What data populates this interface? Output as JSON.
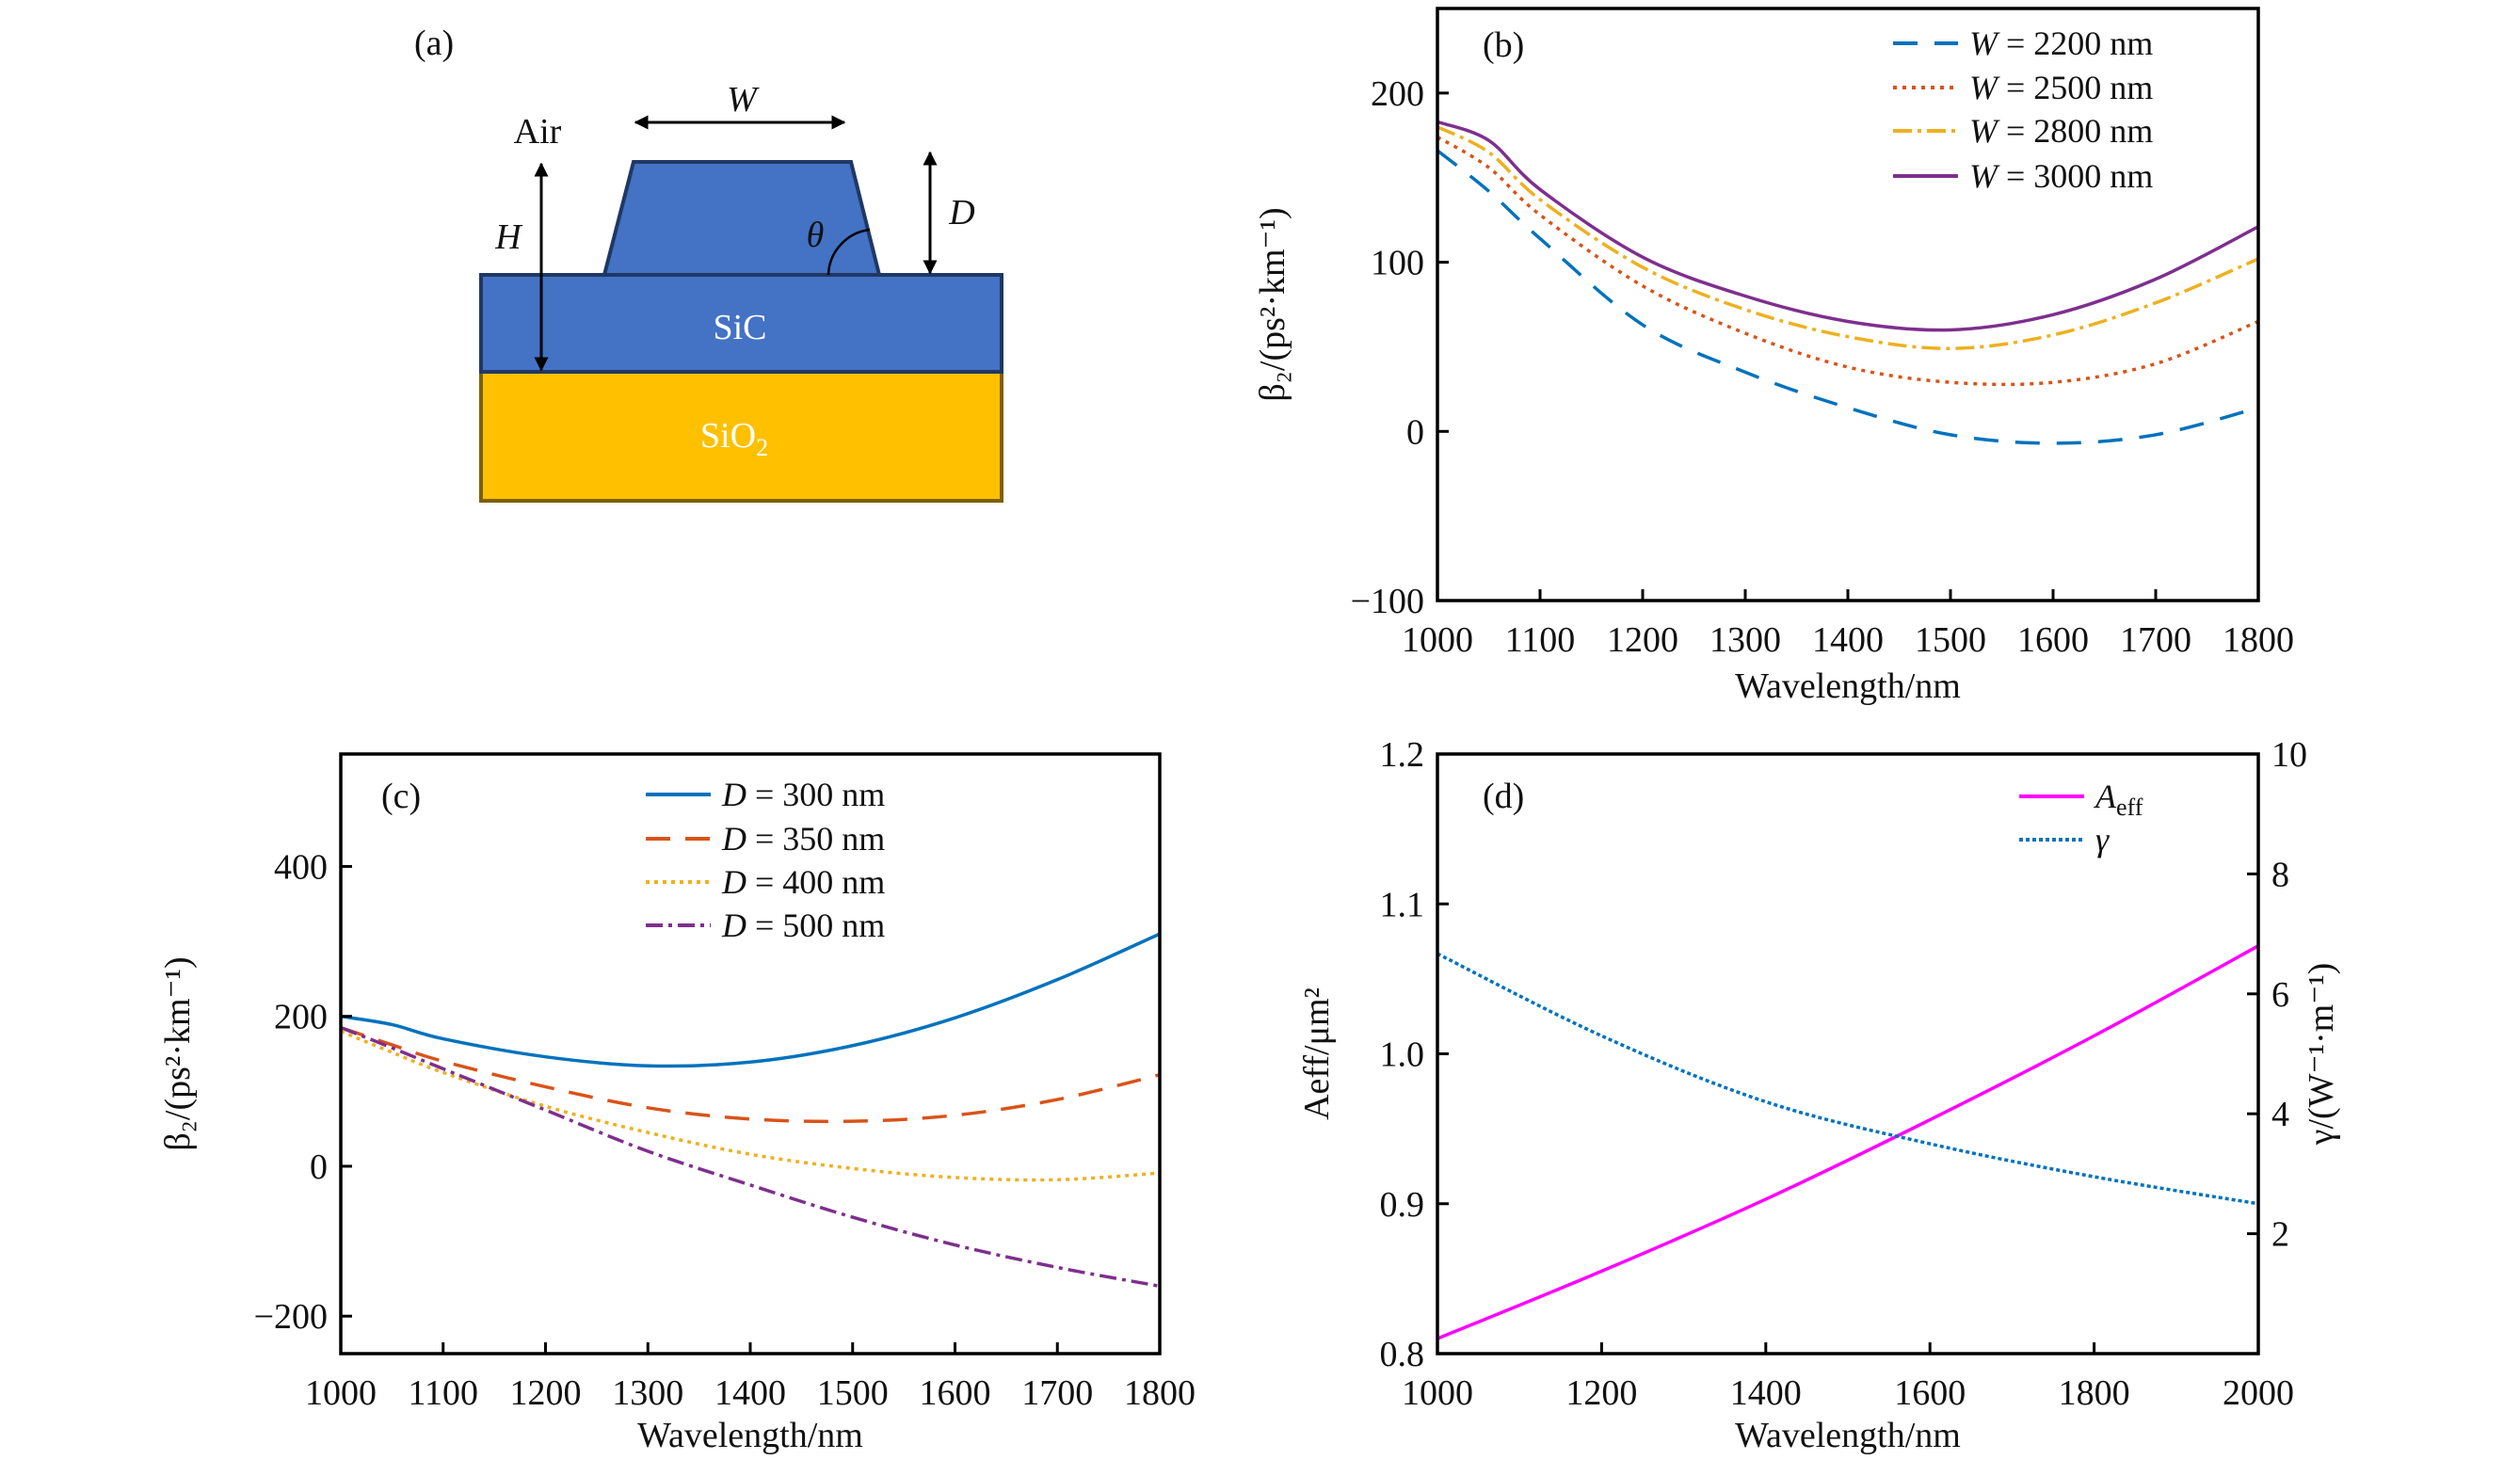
{
  "diagram": {
    "panel_label": "(a)",
    "labels": {
      "air": "Air",
      "w": "W",
      "h": "H",
      "d": "D",
      "theta": "θ",
      "sic": "SiC",
      "sio2_base": "SiO",
      "sio2_sub": "2"
    },
    "colors": {
      "sic": "#4472c4",
      "sio2": "#ffc000",
      "sic_border": "#1f3864",
      "sio2_border": "#7f6000"
    }
  },
  "chart_data": [
    {
      "id": "b",
      "type": "line",
      "panel_label": "(b)",
      "xlabel": "Wavelength/nm",
      "ylabel": "β₂/(ps²·km⁻¹)",
      "xlim": [
        1000,
        1800
      ],
      "ylim": [
        -100,
        250
      ],
      "xticks": [
        1000,
        1100,
        1200,
        1300,
        1400,
        1500,
        1600,
        1700,
        1800
      ],
      "yticks": [
        -100,
        0,
        100,
        200
      ],
      "ytick_labels": [
        "−100",
        "0",
        "100",
        "200"
      ],
      "legend_position": "top-right",
      "grid": false,
      "x": [
        1000,
        1050,
        1100,
        1200,
        1300,
        1400,
        1500,
        1600,
        1700,
        1800
      ],
      "series": [
        {
          "name": "W = 2200 nm",
          "var": "W",
          "rest": " = 2200 nm",
          "color": "#0072bd",
          "dash": "26 18",
          "values": [
            166,
            142,
            114,
            63,
            35,
            14,
            -2,
            -7,
            -2,
            14
          ]
        },
        {
          "name": "W = 2500 nm",
          "var": "W",
          "rest": " = 2500 nm",
          "color": "#d95319",
          "dash": "4 6",
          "values": [
            174,
            156,
            128,
            86,
            58,
            38,
            29,
            29,
            40,
            65
          ]
        },
        {
          "name": "W = 2800 nm",
          "var": "W",
          "rest": " = 2800 nm",
          "color": "#edb120",
          "dash": "20 6 4 6",
          "values": [
            180,
            165,
            137,
            97,
            72,
            56,
            49,
            57,
            76,
            102
          ]
        },
        {
          "name": "W = 3000 nm",
          "var": "W",
          "rest": " = 3000 nm",
          "color": "#7e2f8e",
          "dash": "",
          "values": [
            183,
            172,
            143,
            103,
            80,
            65,
            60,
            69,
            90,
            121
          ]
        }
      ]
    },
    {
      "id": "c",
      "type": "line",
      "panel_label": "(c)",
      "xlabel": "Wavelength/nm",
      "ylabel": "β₂/(ps²·km⁻¹)",
      "xlim": [
        1000,
        1800
      ],
      "ylim": [
        -250,
        550
      ],
      "xticks": [
        1000,
        1100,
        1200,
        1300,
        1400,
        1500,
        1600,
        1700,
        1800
      ],
      "yticks": [
        -200,
        0,
        200,
        400
      ],
      "ytick_labels": [
        "−200",
        "0",
        "200",
        "400"
      ],
      "legend_position": "top-right",
      "grid": false,
      "x": [
        1000,
        1050,
        1100,
        1200,
        1300,
        1400,
        1500,
        1600,
        1700,
        1800
      ],
      "series": [
        {
          "name": "D = 300 nm",
          "var": "D",
          "rest": " = 300 nm",
          "color": "#0072bd",
          "dash": "",
          "values": [
            200,
            189,
            170,
            146,
            134,
            139,
            161,
            198,
            249,
            310
          ]
        },
        {
          "name": "D = 350 nm",
          "var": "D",
          "rest": " = 350 nm",
          "color": "#d95319",
          "dash": "26 16",
          "values": [
            185,
            162,
            140,
            106,
            78,
            63,
            60,
            68,
            89,
            122
          ]
        },
        {
          "name": "D = 400 nm",
          "var": "D",
          "rest": " = 400 nm",
          "color": "#edb120",
          "dash": "4 5",
          "values": [
            180,
            152,
            125,
            80,
            45,
            16,
            -3,
            -15,
            -18,
            -9
          ]
        },
        {
          "name": "D = 500 nm",
          "var": "D",
          "rest": " = 500 nm",
          "color": "#7e2f8e",
          "dash": "18 6 4 6",
          "values": [
            185,
            158,
            130,
            75,
            20,
            -25,
            -68,
            -105,
            -135,
            -160
          ]
        }
      ]
    },
    {
      "id": "d",
      "type": "line",
      "panel_label": "(d)",
      "xlabel": "Wavelength/nm",
      "ylabel": "A_eff/μm²",
      "ylabel_right": "γ/(W⁻¹·m⁻¹)",
      "xlim": [
        1000,
        2000
      ],
      "ylim": [
        0.8,
        1.2
      ],
      "ylim_right": [
        0,
        10
      ],
      "xticks": [
        1000,
        1200,
        1400,
        1600,
        1800,
        2000
      ],
      "yticks": [
        0.8,
        0.9,
        1.0,
        1.1,
        1.2
      ],
      "ytick_labels": [
        "0.8",
        "0.9",
        "1.0",
        "1.1",
        "1.2"
      ],
      "yticks_right": [
        2,
        4,
        6,
        8,
        10
      ],
      "legend_position": "top-right",
      "grid": false,
      "x": [
        1000,
        1200,
        1400,
        1600,
        1800,
        2000
      ],
      "series": [
        {
          "name": "A_eff",
          "var": "A",
          "sub": "eff",
          "rest": "",
          "axis": "left",
          "color": "#ff00ff",
          "dash": "",
          "values": [
            0.81,
            0.855,
            0.903,
            0.956,
            1.012,
            1.072
          ]
        },
        {
          "name": "γ",
          "var": "γ",
          "rest": "",
          "axis": "right",
          "color": "#0072bd",
          "dash": "4 3",
          "values": [
            6.67,
            5.3,
            4.2,
            3.5,
            2.95,
            2.5
          ]
        }
      ]
    }
  ]
}
